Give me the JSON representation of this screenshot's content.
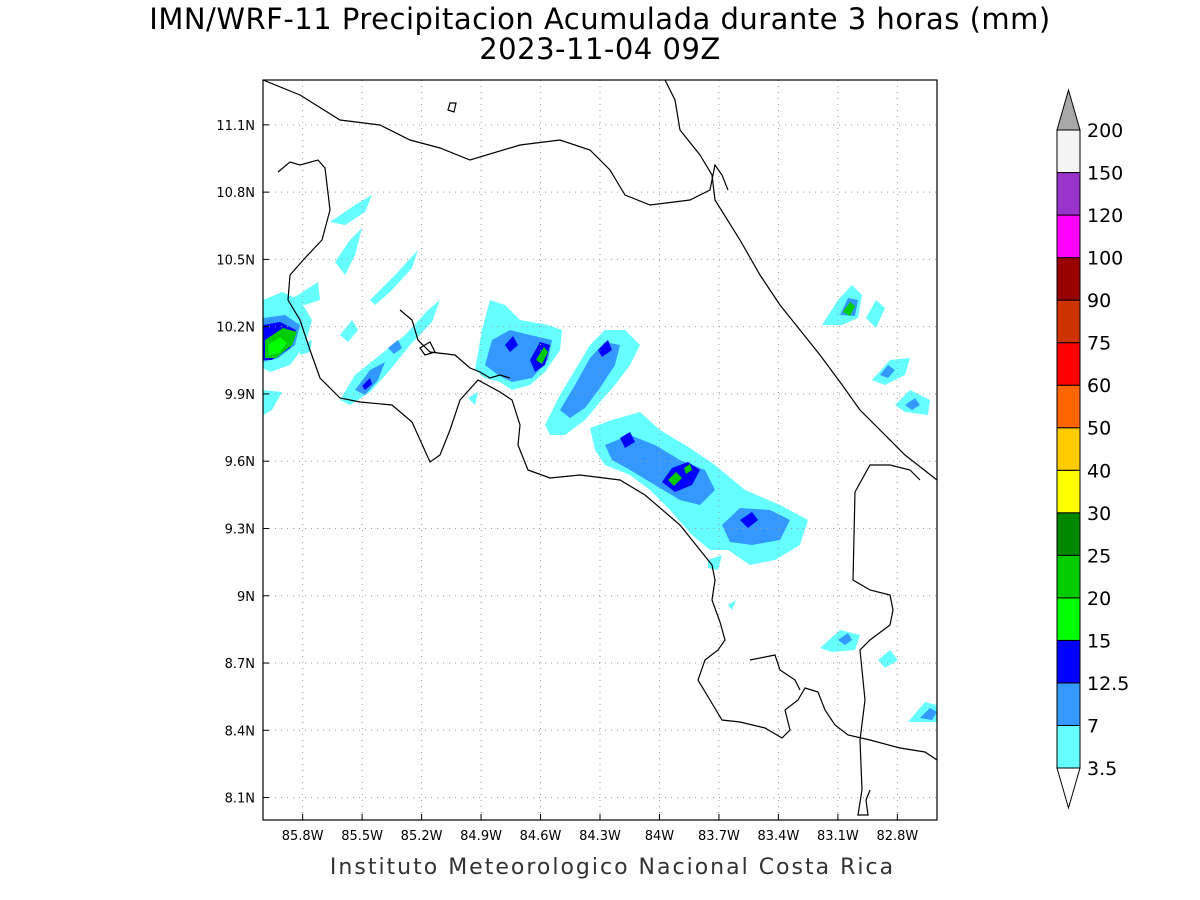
{
  "header": {
    "title": "IMN/WRF-11 Precipitacion Acumulada durante 3 horas (mm)",
    "subtitle": "2023-11-04 09Z"
  },
  "footer": {
    "credit": "Instituto Meteorologico Nacional Costa Rica"
  },
  "map": {
    "lon_range": [
      -86.0,
      -82.6
    ],
    "lat_range": [
      8.0,
      11.3
    ],
    "lon_ticks": [
      "85.8W",
      "85.5W",
      "85.2W",
      "84.9W",
      "84.6W",
      "84.3W",
      "84W",
      "83.7W",
      "83.4W",
      "83.1W",
      "82.8W"
    ],
    "lat_ticks": [
      "11.1N",
      "10.8N",
      "10.5N",
      "10.2N",
      "9.9N",
      "9.6N",
      "9.3N",
      "9N",
      "8.7N",
      "8.4N",
      "8.1N"
    ],
    "grid": "dotted"
  },
  "colorbar": {
    "levels": [
      "3.5",
      "7",
      "12.5",
      "15",
      "20",
      "25",
      "30",
      "40",
      "50",
      "60",
      "75",
      "90",
      "100",
      "120",
      "150",
      "200"
    ],
    "colors": [
      "#ffffff",
      "#66ffff",
      "#3399ff",
      "#0000ff",
      "#00ff00",
      "#00cc00",
      "#008800",
      "#ffff00",
      "#ffcc00",
      "#ff6600",
      "#ff0000",
      "#cc3300",
      "#990000",
      "#ff00ff",
      "#9933cc",
      "#f4f4f4",
      "#a8a8a8"
    ]
  }
}
